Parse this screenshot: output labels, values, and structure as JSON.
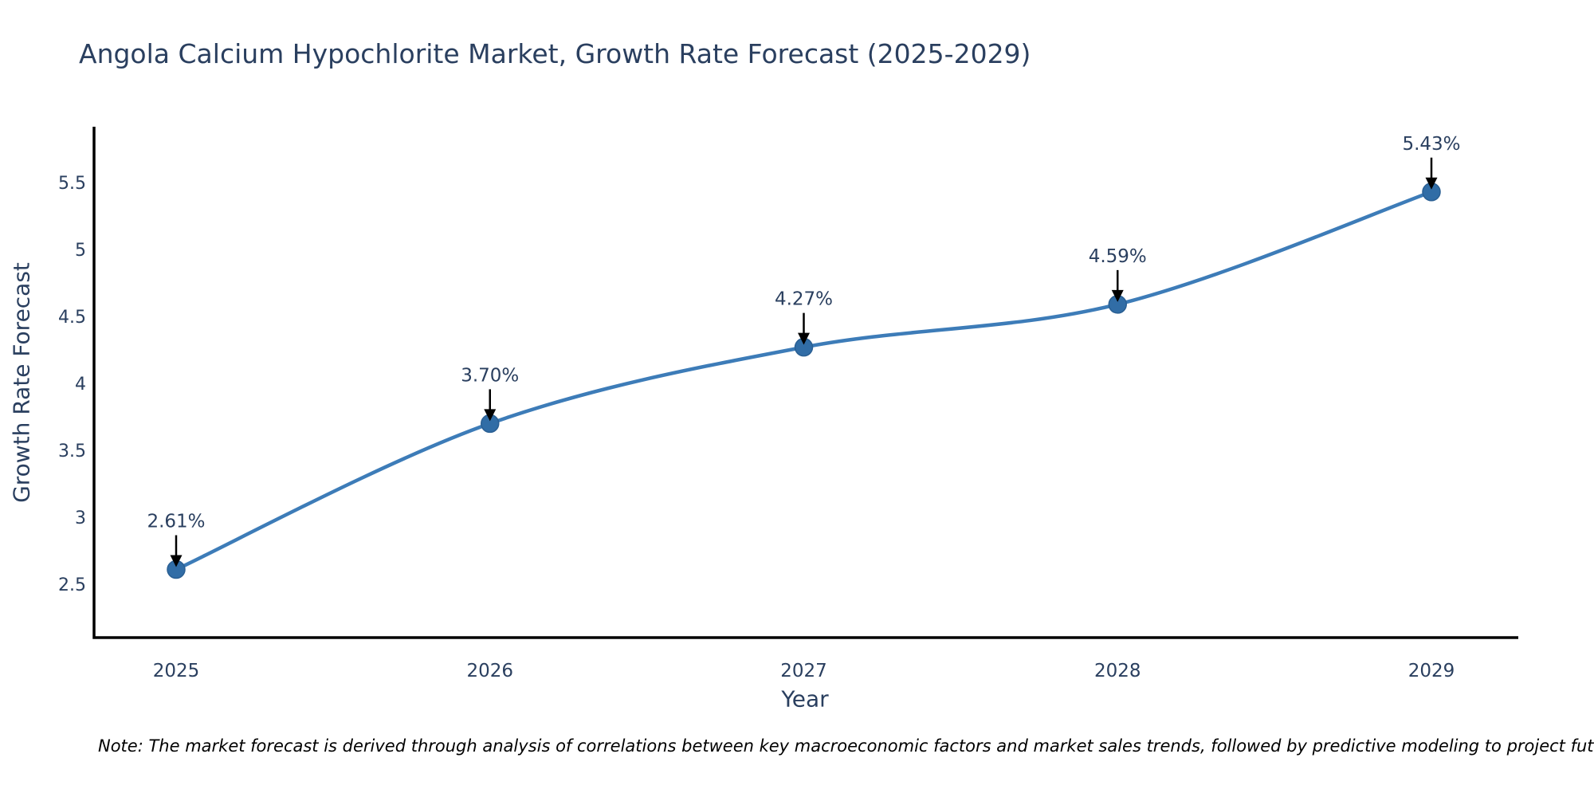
{
  "title": "Angola Calcium Hypochlorite Market, Growth Rate Forecast (2025-2029)",
  "note": "Note: The market forecast is derived through analysis of correlations between key macroeconomic factors and market sales trends, followed by predictive modeling to project future sales",
  "chart_data": {
    "type": "line",
    "title": "Angola Calcium Hypochlorite Market, Growth Rate Forecast (2025-2029)",
    "xlabel": "Year",
    "ylabel": "Growth Rate Forecast",
    "x": [
      2025,
      2026,
      2027,
      2028,
      2029
    ],
    "xtick_labels": [
      "2025",
      "2026",
      "2027",
      "2028",
      "2029"
    ],
    "series": [
      {
        "name": "Growth Rate Forecast",
        "values": [
          2.61,
          3.7,
          4.27,
          4.59,
          5.43
        ],
        "point_labels": [
          "2.61%",
          "3.70%",
          "4.27%",
          "4.59%",
          "5.43%"
        ]
      }
    ],
    "yticks": [
      2.5,
      3,
      3.5,
      4,
      4.5,
      5,
      5.5
    ],
    "ytick_labels": [
      "2.5",
      "3",
      "3.5",
      "4",
      "4.5",
      "5",
      "5.5"
    ],
    "ylim": [
      2.1,
      5.92
    ],
    "line_shape": "spline",
    "grid": false,
    "legend": false,
    "annotations": "value labels with black down-arrows above each point",
    "colors": {
      "line": "#3d7cb8",
      "marker": "#316da6",
      "marker_edge": "#2a5f93",
      "text": "#2a3f5f",
      "axis": "#000000",
      "arrow": "#000000",
      "note_text": "#000000",
      "background": "#ffffff"
    }
  }
}
